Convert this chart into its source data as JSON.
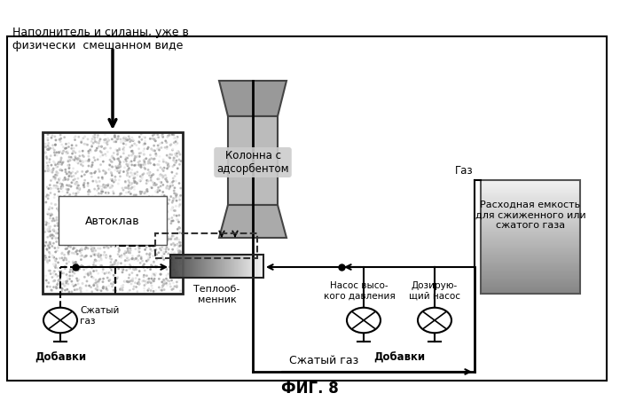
{
  "title": "ФИГ. 8",
  "bg_color": "#ffffff",
  "text_top_left_1": "Наполнитель и силаны, уже в",
  "text_top_left_2": "физически  смешанном виде",
  "text_autoclave": "Автоклав",
  "text_column": "Колонна с\nадсорбентом",
  "text_compressed_gas_top": "Сжатый газ",
  "text_heat_exchanger": "Теплооб-\nменник",
  "text_compressed_gas_bottom": "Сжатый\nгаз",
  "text_additive1": "Добавки",
  "text_additive2": "Добавки",
  "text_high_pressure_pump": "Насос высо-\nкого давления",
  "text_dosing_pump": "Дозирую-\nщий насос",
  "text_tank": "Расходная емкость\nдля сжиженного или\nсжатого газа",
  "text_gas": "Газ"
}
